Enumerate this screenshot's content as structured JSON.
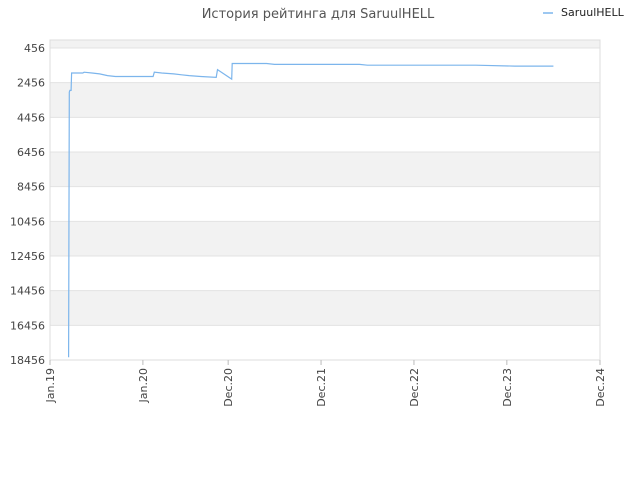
{
  "chart_data": {
    "type": "line",
    "title": "История рейтинга для SaruulHELL",
    "xlabel": "",
    "ylabel": "",
    "y_inverted": true,
    "ylim": [
      18456,
      456
    ],
    "yticks": [
      456,
      2456,
      4456,
      6456,
      8456,
      10456,
      12456,
      14456,
      16456,
      18456
    ],
    "ytick_labels": [
      "456",
      "2456",
      "4456",
      "6456",
      "8456",
      "10456",
      "12456",
      "14456",
      "16456",
      "18456"
    ],
    "xlim": [
      "2019-01-01",
      "2024-12-01"
    ],
    "xticks": [
      "2019-01-01",
      "2020-01-01",
      "2020-12-01",
      "2021-12-01",
      "2022-12-01",
      "2023-12-01",
      "2024-12-01"
    ],
    "xtick_labels": [
      "Jan.19",
      "Jan.20",
      "Dec.20",
      "Dec.21",
      "Dec.22",
      "Dec.23",
      "Dec.24"
    ],
    "grid": true,
    "alternating_bands": true,
    "legend_position": "top-right",
    "series": [
      {
        "name": "SaruulHELL",
        "color": "#7cb5ec",
        "x": [
          "2019-03-15",
          "2019-03-18",
          "2019-03-20",
          "2019-03-25",
          "2019-03-27",
          "2019-04-10",
          "2019-05-10",
          "2019-05-15",
          "2019-06-15",
          "2019-07-15",
          "2019-08-15",
          "2019-09-15",
          "2020-02-10",
          "2020-02-15",
          "2020-03-15",
          "2020-05-01",
          "2020-06-01",
          "2020-07-01",
          "2020-08-15",
          "2020-10-15",
          "2020-10-20",
          "2020-12-15",
          "2020-12-17",
          "2021-03-15",
          "2021-05-01",
          "2021-06-01",
          "2021-09-01",
          "2022-05-01",
          "2022-06-01",
          "2023-04-01",
          "2023-05-01",
          "2023-08-01",
          "2024-01-01",
          "2024-04-01",
          "2024-06-01"
        ],
        "y": [
          18300,
          3000,
          2900,
          2900,
          1900,
          1900,
          1900,
          1850,
          1900,
          1950,
          2050,
          2100,
          2100,
          1850,
          1900,
          1950,
          2000,
          2050,
          2100,
          2150,
          1700,
          2250,
          1350,
          1350,
          1350,
          1400,
          1400,
          1400,
          1450,
          1450,
          1450,
          1450,
          1500,
          1500,
          1500
        ]
      }
    ]
  }
}
